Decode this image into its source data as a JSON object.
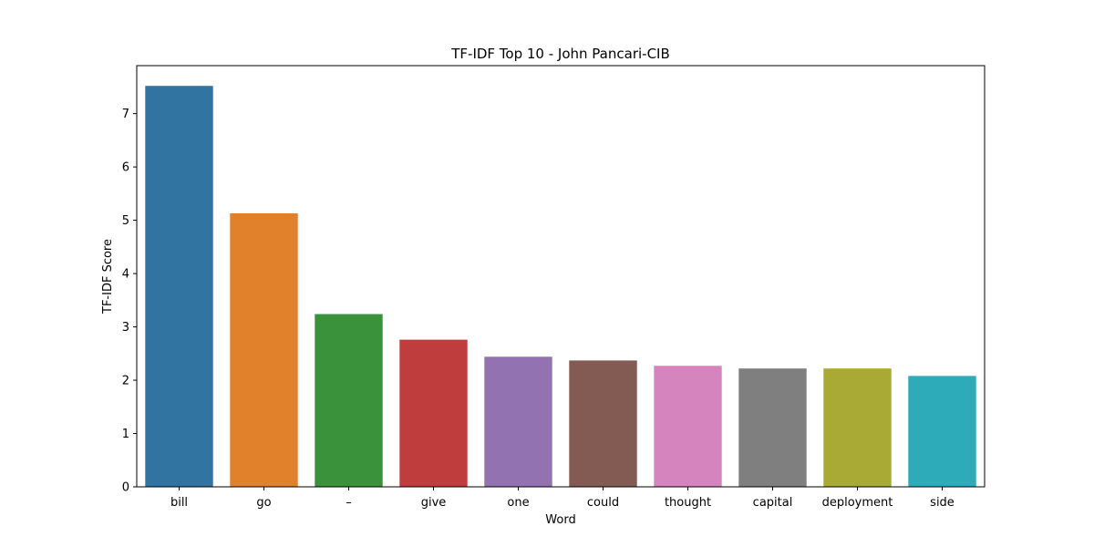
{
  "chart_data": {
    "type": "bar",
    "title": "TF-IDF Top 10 - John Pancari-CIB",
    "xlabel": "Word",
    "ylabel": "TF-IDF Score",
    "categories": [
      "bill",
      "go",
      "–",
      "give",
      "one",
      "could",
      "thought",
      "capital",
      "deployment",
      "side"
    ],
    "values": [
      7.52,
      5.13,
      3.24,
      2.76,
      2.44,
      2.37,
      2.27,
      2.22,
      2.22,
      2.08
    ],
    "colors": [
      "#3274a1",
      "#e1812c",
      "#3a923a",
      "#c03d3e",
      "#9372b2",
      "#845b53",
      "#d684bd",
      "#7f7f7f",
      "#a9aa35",
      "#2eabb8"
    ],
    "ylim": [
      0,
      7.9
    ],
    "yticks": [
      "0",
      "1",
      "2",
      "3",
      "4",
      "5",
      "6",
      "7"
    ],
    "grid": false,
    "legend": "none"
  }
}
